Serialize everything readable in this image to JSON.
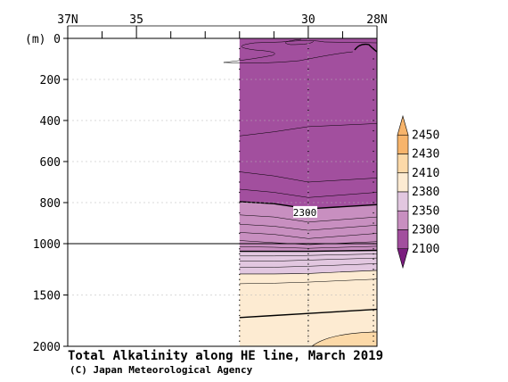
{
  "chart_data": {
    "type": "contour",
    "title": "Total Alkalinity along HE line, March 2019",
    "credit": "(C) Japan Meteorological Agency",
    "y_unit_label": "(m)",
    "x_axis": {
      "range": [
        37,
        28
      ],
      "ticks": [
        {
          "value": 37,
          "label": "37N"
        },
        {
          "value": 35,
          "label": "35"
        },
        {
          "value": 30,
          "label": "30"
        },
        {
          "value": 28,
          "label": "28N"
        }
      ],
      "minor_ticks": [
        36,
        34,
        33,
        32,
        31,
        29
      ]
    },
    "y_axis": {
      "range": [
        0,
        2000
      ],
      "reversed": true,
      "break_at": 1000,
      "ticks": [
        {
          "value": 0,
          "label": "0"
        },
        {
          "value": 200,
          "label": "200"
        },
        {
          "value": 400,
          "label": "400"
        },
        {
          "value": 600,
          "label": "600"
        },
        {
          "value": 800,
          "label": "800"
        },
        {
          "value": 1000,
          "label": "1000"
        },
        {
          "value": 1500,
          "label": "1500"
        },
        {
          "value": 2000,
          "label": "2000"
        }
      ]
    },
    "data_extent_lat": [
      32,
      28
    ],
    "station_lats": [
      32,
      30,
      28
    ],
    "legend": {
      "levels": [
        "2100",
        "2300",
        "2350",
        "2380",
        "2410",
        "2430",
        "2450"
      ],
      "colors": [
        "#7a1c7e",
        "#a24f9e",
        "#c88fc0",
        "#e2c7e0",
        "#fdebd2",
        "#fcd9a8",
        "#f7b46b"
      ],
      "top_color": "#f7b46b",
      "bottom_color": "#7a1c7e"
    },
    "bands": [
      {
        "color": "#a24f9e",
        "top": [
          0,
          0,
          0,
          0
        ],
        "bottom": [
          795,
          805,
          830,
          810
        ]
      },
      {
        "color": "#c88fc0",
        "top": [
          795,
          805,
          830,
          810
        ],
        "bottom": [
          1075,
          1075,
          1075,
          1065
        ]
      },
      {
        "color": "#e2c7e0",
        "top": [
          1075,
          1075,
          1075,
          1065
        ],
        "bottom": [
          1295,
          1295,
          1290,
          1260
        ]
      },
      {
        "color": "#fdebd2",
        "top": [
          1295,
          1295,
          1290,
          1260
        ],
        "bottom": [
          2000,
          2000,
          2000,
          2000
        ]
      }
    ],
    "band_lats": [
      32,
      31,
      30,
      28
    ],
    "contour_lines": [
      {
        "value": 2300,
        "bold": true,
        "depths": [
          795,
          805,
          830,
          810
        ],
        "label": "2300",
        "label_lat": 30.1
      },
      {
        "value": 2350,
        "bold": true,
        "depths": [
          1075,
          1075,
          1075,
          1065
        ]
      },
      {
        "value": 2380,
        "bold": false,
        "depths": [
          1295,
          1295,
          1290,
          1260
        ]
      },
      {
        "value": 2410,
        "bold": true,
        "depths": [
          1720,
          1700,
          1680,
          1640
        ]
      }
    ],
    "thin_lines": [
      [
        475,
        455,
        430,
        415
      ],
      [
        650,
        670,
        700,
        680
      ],
      [
        735,
        750,
        775,
        750
      ],
      [
        860,
        870,
        895,
        870
      ],
      [
        905,
        915,
        935,
        910
      ],
      [
        945,
        955,
        975,
        950
      ],
      [
        985,
        995,
        1010,
        990
      ],
      [
        1030,
        1035,
        1045,
        1025
      ],
      [
        1120,
        1120,
        1115,
        1100
      ],
      [
        1170,
        1170,
        1160,
        1140
      ],
      [
        1230,
        1230,
        1220,
        1195
      ],
      [
        1390,
        1385,
        1375,
        1345
      ]
    ],
    "grid": true
  }
}
